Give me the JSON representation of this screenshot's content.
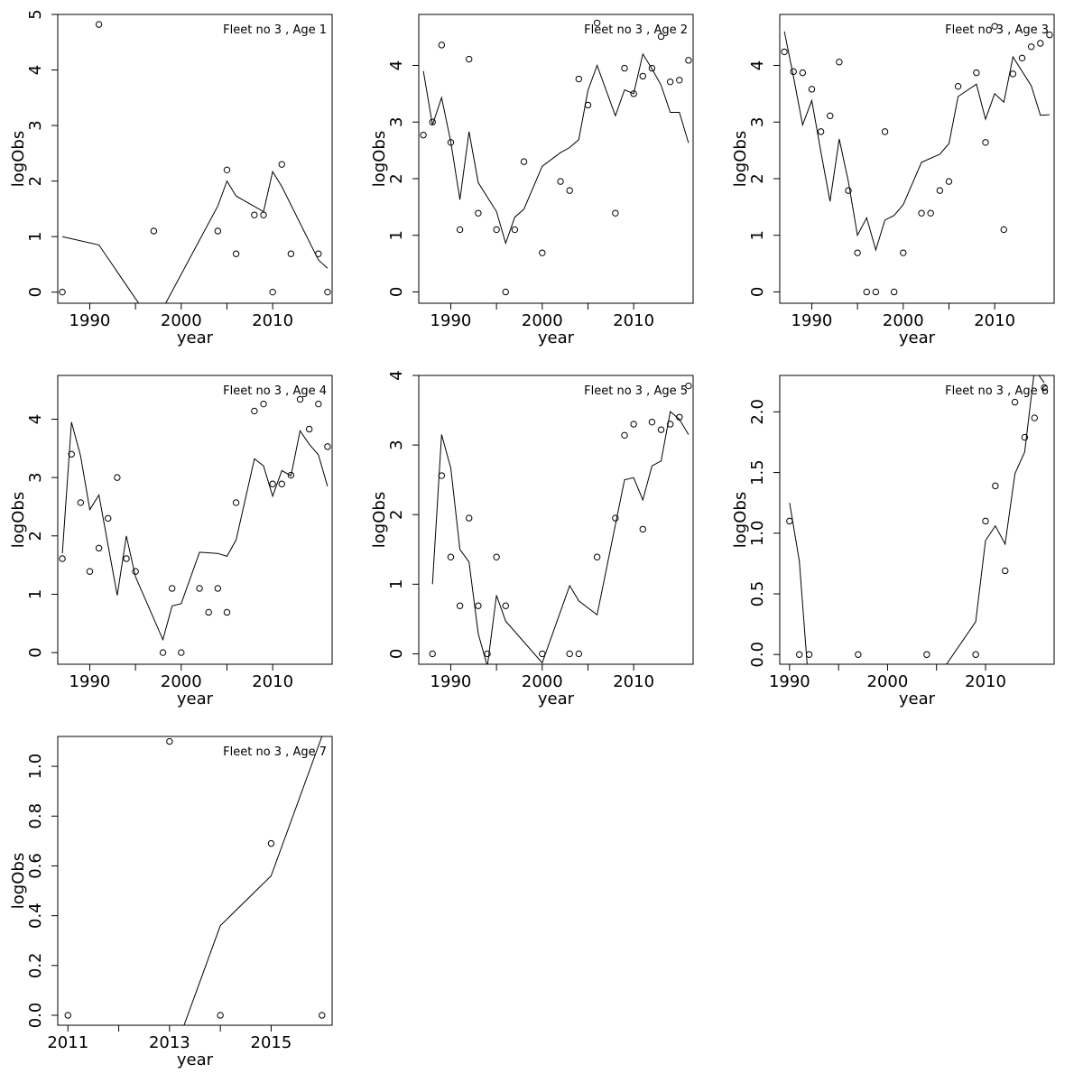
{
  "chart_data": [
    {
      "type": "line",
      "title": "Fleet no 3 , Age 1",
      "xlabel": "year",
      "ylabel": "logObs",
      "xlim": [
        1986.5,
        2016.5
      ],
      "ylim": [
        -0.2,
        5.0
      ],
      "xticks": [
        1990,
        2000,
        2010
      ],
      "yticks": [
        0,
        1,
        2,
        3,
        4,
        5
      ],
      "series": [
        {
          "kind": "fitted-line",
          "x": [
            1987,
            1991,
            1997,
            2004,
            2005,
            2006,
            2009,
            2010,
            2011,
            2015,
            2016
          ],
          "y": [
            1.0,
            0.85,
            -0.6,
            1.55,
            2.0,
            1.73,
            1.45,
            2.17,
            1.9,
            0.58,
            0.43
          ]
        },
        {
          "kind": "observed-points",
          "x": [
            1987,
            1991,
            1997,
            2004,
            2005,
            2006,
            2008,
            2009,
            2010,
            2011,
            2012,
            2015,
            2016
          ],
          "y": [
            0.0,
            4.82,
            1.1,
            1.1,
            2.2,
            0.69,
            1.39,
            1.39,
            0.0,
            2.3,
            0.69,
            0.69,
            0.0
          ]
        }
      ]
    },
    {
      "type": "line",
      "title": "Fleet no 3 , Age 2",
      "xlabel": "year",
      "ylabel": "logObs",
      "xlim": [
        1986.5,
        2016.5
      ],
      "ylim": [
        -0.2,
        4.9
      ],
      "xticks": [
        1990,
        2000,
        2010
      ],
      "yticks": [
        0,
        1,
        2,
        3,
        4
      ],
      "series": [
        {
          "kind": "fitted-line",
          "x": [
            1987,
            1988,
            1989,
            1990,
            1991,
            1992,
            1993,
            1995,
            1996,
            1997,
            1998,
            2000,
            2002,
            2003,
            2004,
            2005,
            2006,
            2008,
            2009,
            2010,
            2011,
            2012,
            2013,
            2014,
            2015,
            2016
          ],
          "y": [
            3.9,
            2.95,
            3.43,
            2.65,
            1.63,
            2.83,
            1.93,
            1.42,
            0.86,
            1.32,
            1.46,
            2.22,
            2.46,
            2.55,
            2.69,
            3.56,
            4.0,
            3.11,
            3.57,
            3.5,
            4.2,
            3.94,
            3.65,
            3.17,
            3.17,
            2.63
          ]
        },
        {
          "kind": "observed-points",
          "x": [
            1987,
            1988,
            1989,
            1990,
            1991,
            1992,
            1993,
            1995,
            1996,
            1997,
            1998,
            2000,
            2002,
            2003,
            2004,
            2005,
            2006,
            2008,
            2009,
            2010,
            2011,
            2012,
            2013,
            2014,
            2015,
            2016
          ],
          "y": [
            2.77,
            3.0,
            4.36,
            2.64,
            1.1,
            4.11,
            1.39,
            1.1,
            0.0,
            1.1,
            2.3,
            0.69,
            1.95,
            1.79,
            3.76,
            3.3,
            4.75,
            1.39,
            3.95,
            3.5,
            3.81,
            3.95,
            4.51,
            3.71,
            3.74,
            4.09
          ]
        }
      ]
    },
    {
      "type": "line",
      "title": "Fleet no 3 , Age 3",
      "xlabel": "year",
      "ylabel": "logObs",
      "xlim": [
        1986.5,
        2016.5
      ],
      "ylim": [
        -0.2,
        4.9
      ],
      "xticks": [
        1990,
        2000,
        2010
      ],
      "yticks": [
        0,
        1,
        2,
        3,
        4
      ],
      "series": [
        {
          "kind": "fitted-line",
          "x": [
            1987,
            1988,
            1989,
            1990,
            1991,
            1992,
            1993,
            1994,
            1995,
            1996,
            1997,
            1998,
            1999,
            2000,
            2002,
            2004,
            2005,
            2006,
            2008,
            2009,
            2010,
            2011,
            2012,
            2014,
            2015,
            2016
          ],
          "y": [
            4.6,
            3.8,
            2.95,
            3.38,
            2.47,
            1.6,
            2.7,
            1.95,
            1.0,
            1.31,
            0.74,
            1.27,
            1.35,
            1.54,
            2.29,
            2.43,
            2.62,
            3.45,
            3.67,
            3.05,
            3.5,
            3.35,
            4.15,
            3.64,
            3.12,
            3.13
          ]
        },
        {
          "kind": "observed-points",
          "x": [
            1987,
            1988,
            1989,
            1990,
            1991,
            1992,
            1993,
            1994,
            1995,
            1996,
            1997,
            1998,
            1999,
            2000,
            2002,
            2003,
            2004,
            2005,
            2006,
            2008,
            2009,
            2010,
            2011,
            2012,
            2013,
            2014,
            2015,
            2016
          ],
          "y": [
            4.24,
            3.89,
            3.87,
            3.58,
            2.83,
            3.11,
            4.06,
            1.79,
            0.69,
            0.0,
            0.0,
            2.83,
            0.0,
            0.69,
            1.39,
            1.39,
            1.79,
            1.95,
            3.63,
            3.87,
            2.64,
            4.69,
            1.1,
            3.85,
            4.13,
            4.33,
            4.39,
            4.54
          ]
        }
      ]
    },
    {
      "type": "line",
      "title": "Fleet no 3 , Age 4",
      "xlabel": "year",
      "ylabel": "logObs",
      "xlim": [
        1986.5,
        2016.5
      ],
      "ylim": [
        -0.2,
        4.75
      ],
      "xticks": [
        1990,
        2000,
        2010
      ],
      "yticks": [
        0,
        1,
        2,
        3,
        4
      ],
      "series": [
        {
          "kind": "fitted-line",
          "x": [
            1987,
            1988,
            1989,
            1990,
            1991,
            1993,
            1994,
            1995,
            1998,
            1999,
            2000,
            2002,
            2004,
            2005,
            2006,
            2008,
            2009,
            2010,
            2011,
            2012,
            2013,
            2014,
            2015,
            2016
          ],
          "y": [
            1.7,
            3.95,
            3.37,
            2.45,
            2.7,
            0.98,
            2.0,
            1.3,
            0.22,
            0.8,
            0.84,
            1.72,
            1.7,
            1.65,
            1.93,
            3.32,
            3.2,
            2.68,
            3.12,
            3.03,
            3.8,
            3.57,
            3.39,
            2.85
          ]
        },
        {
          "kind": "observed-points",
          "x": [
            1987,
            1988,
            1989,
            1990,
            1991,
            1992,
            1993,
            1994,
            1995,
            1998,
            1999,
            2000,
            2002,
            2003,
            2004,
            2005,
            2006,
            2008,
            2009,
            2010,
            2011,
            2012,
            2013,
            2014,
            2015,
            2016
          ],
          "y": [
            1.61,
            3.4,
            2.57,
            1.39,
            1.79,
            2.3,
            3.0,
            1.61,
            1.39,
            0.0,
            1.1,
            0.0,
            1.1,
            0.69,
            1.1,
            0.69,
            2.57,
            4.14,
            4.26,
            2.89,
            2.89,
            3.04,
            4.34,
            3.83,
            4.26,
            3.53
          ]
        }
      ]
    },
    {
      "type": "line",
      "title": "Fleet no 3 , Age 5",
      "xlabel": "year",
      "ylabel": "logObs",
      "xlim": [
        1986.5,
        2016.5
      ],
      "ylim": [
        -0.15,
        4.0
      ],
      "xticks": [
        1990,
        2000,
        2010
      ],
      "yticks": [
        0,
        1,
        2,
        3,
        4
      ],
      "series": [
        {
          "kind": "fitted-line",
          "x": [
            1988,
            1989,
            1990,
            1991,
            1992,
            1993,
            1994,
            1995,
            1996,
            2000,
            2003,
            2004,
            2006,
            2009,
            2010,
            2011,
            2012,
            2013,
            2014,
            2015,
            2016
          ],
          "y": [
            1.0,
            3.15,
            2.67,
            1.5,
            1.32,
            0.29,
            -0.18,
            0.84,
            0.47,
            -0.13,
            0.98,
            0.76,
            0.56,
            2.5,
            2.53,
            2.21,
            2.7,
            2.77,
            3.48,
            3.37,
            3.15
          ]
        },
        {
          "kind": "observed-points",
          "x": [
            1988,
            1989,
            1990,
            1991,
            1992,
            1993,
            1994,
            1995,
            1996,
            2000,
            2003,
            2004,
            2006,
            2008,
            2009,
            2010,
            2011,
            2012,
            2013,
            2014,
            2015,
            2016
          ],
          "y": [
            0.0,
            2.56,
            1.39,
            0.69,
            1.95,
            0.69,
            0.0,
            1.39,
            0.69,
            0.0,
            0.0,
            0.0,
            1.39,
            1.95,
            3.14,
            3.3,
            1.79,
            3.33,
            3.22,
            3.3,
            3.4,
            3.85
          ]
        }
      ]
    },
    {
      "type": "line",
      "title": "Fleet no 3 , Age 6",
      "xlabel": "year",
      "ylabel": "logObs",
      "xlim": [
        1989,
        2017
      ],
      "ylim": [
        -0.08,
        2.3
      ],
      "xticks": [
        1990,
        2000,
        2010
      ],
      "yticks": [
        0.0,
        0.5,
        1.0,
        1.5,
        2.0
      ],
      "series": [
        {
          "kind": "fitted-line",
          "x": [
            1990,
            1991,
            1992,
            2005,
            2009,
            2010,
            2011,
            2012,
            2013,
            2014,
            2015,
            2016
          ],
          "y": [
            1.25,
            0.77,
            -0.3,
            -0.2,
            0.27,
            0.94,
            1.06,
            0.91,
            1.49,
            1.67,
            2.35,
            2.24
          ]
        },
        {
          "kind": "observed-points",
          "x": [
            1990,
            1991,
            1992,
            1997,
            2004,
            2009,
            2010,
            2011,
            2012,
            2013,
            2014,
            2015,
            2016
          ],
          "y": [
            1.1,
            0.0,
            0.0,
            0.0,
            0.0,
            0.0,
            1.1,
            1.39,
            0.69,
            2.08,
            1.79,
            1.95,
            2.2
          ]
        }
      ]
    },
    {
      "type": "line",
      "title": "Fleet no 3 , Age 7",
      "xlabel": "year",
      "ylabel": "logObs",
      "xlim": [
        2010.8,
        2016.2
      ],
      "ylim": [
        -0.04,
        1.12
      ],
      "xticks": [
        2011,
        2013,
        2015
      ],
      "yticks": [
        0.0,
        0.2,
        0.4,
        0.6,
        0.8,
        1.0
      ],
      "series": [
        {
          "kind": "fitted-line",
          "x": [
            2013,
            2014,
            2015,
            2016
          ],
          "y": [
            -0.2,
            0.36,
            0.56,
            1.12
          ]
        },
        {
          "kind": "observed-points",
          "x": [
            2011,
            2013,
            2014,
            2015,
            2016
          ],
          "y": [
            0.0,
            1.1,
            0.0,
            0.69,
            0.0
          ]
        }
      ]
    }
  ]
}
